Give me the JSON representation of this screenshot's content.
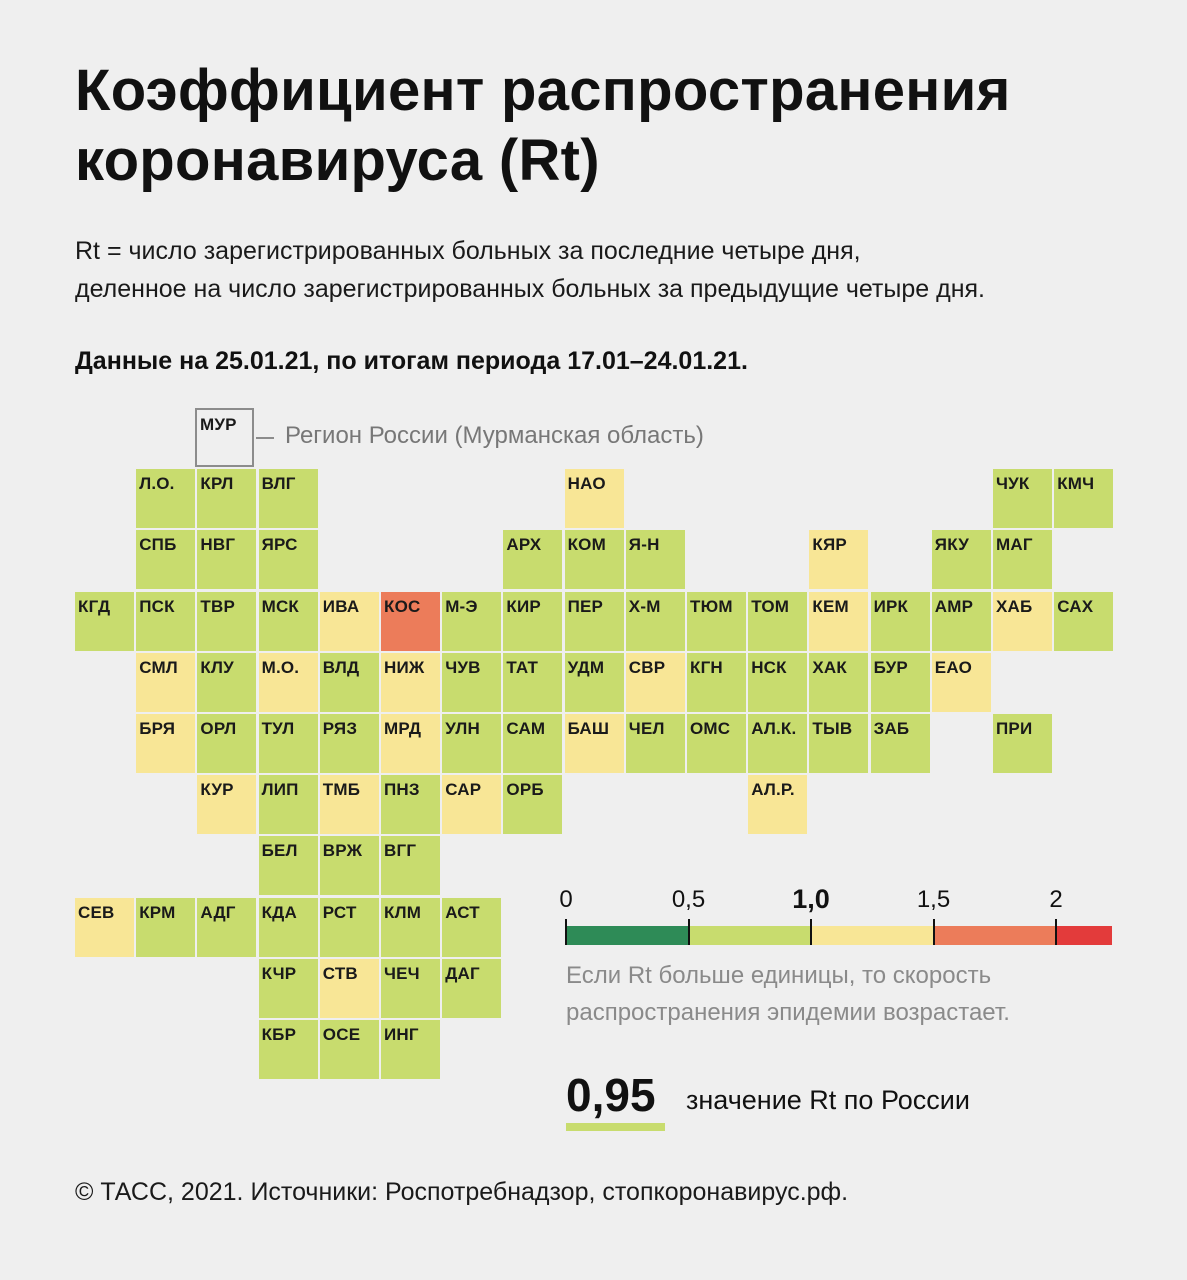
{
  "header": {
    "title": "Коэффициент распространения коронавируса (Rt)",
    "subtitle_line1": "Rt = число зарегистрированных больных за последние четыре дня,",
    "subtitle_line2": "деленное на число зарегистрированных больных за предыдущие четыре дня.",
    "date_note": "Данные на 25.01.21, по итогам периода 17.01–24.01.21."
  },
  "example": {
    "code": "МУР",
    "label": "Регион России (Мурманская область)"
  },
  "colors": {
    "dark_green": "#2e8b57",
    "green": "#c8dc6e",
    "yellow": "#f8e696",
    "orange": "#ec7c5a",
    "red": "#e33b3b",
    "outline": "#8c8c8c"
  },
  "legend": {
    "ticks": [
      "0",
      "0,5",
      "1,0",
      "1,5",
      "2"
    ],
    "note_line1": "Если Rt больше единицы, то скорость",
    "note_line2": "распространения эпидемии возрастает."
  },
  "russia": {
    "value": "0,95",
    "label": "значение Rt по России"
  },
  "footer": "© ТАСС, 2021. Источники: Роспотребнадзор, стопкоронавирус.рф.",
  "regions": [
    {
      "code": "Л.О.",
      "col": 2,
      "row": 1,
      "level": "green"
    },
    {
      "code": "КРЛ",
      "col": 3,
      "row": 1,
      "level": "green"
    },
    {
      "code": "ВЛГ",
      "col": 4,
      "row": 1,
      "level": "green"
    },
    {
      "code": "НАО",
      "col": 9,
      "row": 1,
      "level": "yellow"
    },
    {
      "code": "ЧУК",
      "col": 16,
      "row": 1,
      "level": "green"
    },
    {
      "code": "КМЧ",
      "col": 17,
      "row": 1,
      "level": "green"
    },
    {
      "code": "СПБ",
      "col": 2,
      "row": 2,
      "level": "green"
    },
    {
      "code": "НВГ",
      "col": 3,
      "row": 2,
      "level": "green"
    },
    {
      "code": "ЯРС",
      "col": 4,
      "row": 2,
      "level": "green"
    },
    {
      "code": "АРХ",
      "col": 8,
      "row": 2,
      "level": "green"
    },
    {
      "code": "КОМ",
      "col": 9,
      "row": 2,
      "level": "green"
    },
    {
      "code": "Я-Н",
      "col": 10,
      "row": 2,
      "level": "green"
    },
    {
      "code": "КЯР",
      "col": 13,
      "row": 2,
      "level": "yellow"
    },
    {
      "code": "ЯКУ",
      "col": 15,
      "row": 2,
      "level": "green"
    },
    {
      "code": "МАГ",
      "col": 16,
      "row": 2,
      "level": "green"
    },
    {
      "code": "КГД",
      "col": 1,
      "row": 3,
      "level": "green"
    },
    {
      "code": "ПСК",
      "col": 2,
      "row": 3,
      "level": "green"
    },
    {
      "code": "ТВР",
      "col": 3,
      "row": 3,
      "level": "green"
    },
    {
      "code": "МСК",
      "col": 4,
      "row": 3,
      "level": "green"
    },
    {
      "code": "ИВА",
      "col": 5,
      "row": 3,
      "level": "yellow"
    },
    {
      "code": "КОС",
      "col": 6,
      "row": 3,
      "level": "orange"
    },
    {
      "code": "М-Э",
      "col": 7,
      "row": 3,
      "level": "green"
    },
    {
      "code": "КИР",
      "col": 8,
      "row": 3,
      "level": "green"
    },
    {
      "code": "ПЕР",
      "col": 9,
      "row": 3,
      "level": "green"
    },
    {
      "code": "Х-М",
      "col": 10,
      "row": 3,
      "level": "green"
    },
    {
      "code": "ТЮМ",
      "col": 11,
      "row": 3,
      "level": "green"
    },
    {
      "code": "ТОМ",
      "col": 12,
      "row": 3,
      "level": "green"
    },
    {
      "code": "КЕМ",
      "col": 13,
      "row": 3,
      "level": "yellow"
    },
    {
      "code": "ИРК",
      "col": 14,
      "row": 3,
      "level": "green"
    },
    {
      "code": "АМР",
      "col": 15,
      "row": 3,
      "level": "green"
    },
    {
      "code": "ХАБ",
      "col": 16,
      "row": 3,
      "level": "yellow"
    },
    {
      "code": "САХ",
      "col": 17,
      "row": 3,
      "level": "green"
    },
    {
      "code": "СМЛ",
      "col": 2,
      "row": 4,
      "level": "yellow"
    },
    {
      "code": "КЛУ",
      "col": 3,
      "row": 4,
      "level": "green"
    },
    {
      "code": "М.О.",
      "col": 4,
      "row": 4,
      "level": "yellow"
    },
    {
      "code": "ВЛД",
      "col": 5,
      "row": 4,
      "level": "green"
    },
    {
      "code": "НИЖ",
      "col": 6,
      "row": 4,
      "level": "yellow"
    },
    {
      "code": "ЧУВ",
      "col": 7,
      "row": 4,
      "level": "green"
    },
    {
      "code": "ТАТ",
      "col": 8,
      "row": 4,
      "level": "green"
    },
    {
      "code": "УДМ",
      "col": 9,
      "row": 4,
      "level": "green"
    },
    {
      "code": "СВР",
      "col": 10,
      "row": 4,
      "level": "yellow"
    },
    {
      "code": "КГН",
      "col": 11,
      "row": 4,
      "level": "green"
    },
    {
      "code": "НСК",
      "col": 12,
      "row": 4,
      "level": "green"
    },
    {
      "code": "ХАК",
      "col": 13,
      "row": 4,
      "level": "green"
    },
    {
      "code": "БУР",
      "col": 14,
      "row": 4,
      "level": "green"
    },
    {
      "code": "ЕАО",
      "col": 15,
      "row": 4,
      "level": "yellow"
    },
    {
      "code": "БРЯ",
      "col": 2,
      "row": 5,
      "level": "yellow"
    },
    {
      "code": "ОРЛ",
      "col": 3,
      "row": 5,
      "level": "green"
    },
    {
      "code": "ТУЛ",
      "col": 4,
      "row": 5,
      "level": "green"
    },
    {
      "code": "РЯЗ",
      "col": 5,
      "row": 5,
      "level": "green"
    },
    {
      "code": "МРД",
      "col": 6,
      "row": 5,
      "level": "yellow"
    },
    {
      "code": "УЛН",
      "col": 7,
      "row": 5,
      "level": "green"
    },
    {
      "code": "САМ",
      "col": 8,
      "row": 5,
      "level": "green"
    },
    {
      "code": "БАШ",
      "col": 9,
      "row": 5,
      "level": "yellow"
    },
    {
      "code": "ЧЕЛ",
      "col": 10,
      "row": 5,
      "level": "green"
    },
    {
      "code": "ОМС",
      "col": 11,
      "row": 5,
      "level": "green"
    },
    {
      "code": "АЛ.К.",
      "col": 12,
      "row": 5,
      "level": "green"
    },
    {
      "code": "ТЫВ",
      "col": 13,
      "row": 5,
      "level": "green"
    },
    {
      "code": "ЗАБ",
      "col": 14,
      "row": 5,
      "level": "green"
    },
    {
      "code": "ПРИ",
      "col": 16,
      "row": 5,
      "level": "green"
    },
    {
      "code": "КУР",
      "col": 3,
      "row": 6,
      "level": "yellow"
    },
    {
      "code": "ЛИП",
      "col": 4,
      "row": 6,
      "level": "green"
    },
    {
      "code": "ТМБ",
      "col": 5,
      "row": 6,
      "level": "yellow"
    },
    {
      "code": "ПНЗ",
      "col": 6,
      "row": 6,
      "level": "green"
    },
    {
      "code": "САР",
      "col": 7,
      "row": 6,
      "level": "yellow"
    },
    {
      "code": "ОРБ",
      "col": 8,
      "row": 6,
      "level": "green"
    },
    {
      "code": "АЛ.Р.",
      "col": 12,
      "row": 6,
      "level": "yellow"
    },
    {
      "code": "БЕЛ",
      "col": 4,
      "row": 7,
      "level": "green"
    },
    {
      "code": "ВРЖ",
      "col": 5,
      "row": 7,
      "level": "green"
    },
    {
      "code": "ВГГ",
      "col": 6,
      "row": 7,
      "level": "green"
    },
    {
      "code": "СЕВ",
      "col": 1,
      "row": 8,
      "level": "yellow"
    },
    {
      "code": "КРМ",
      "col": 2,
      "row": 8,
      "level": "green"
    },
    {
      "code": "АДГ",
      "col": 3,
      "row": 8,
      "level": "green"
    },
    {
      "code": "КДА",
      "col": 4,
      "row": 8,
      "level": "green"
    },
    {
      "code": "РСТ",
      "col": 5,
      "row": 8,
      "level": "green"
    },
    {
      "code": "КЛМ",
      "col": 6,
      "row": 8,
      "level": "green"
    },
    {
      "code": "АСТ",
      "col": 7,
      "row": 8,
      "level": "green"
    },
    {
      "code": "КЧР",
      "col": 4,
      "row": 9,
      "level": "green"
    },
    {
      "code": "СТВ",
      "col": 5,
      "row": 9,
      "level": "yellow"
    },
    {
      "code": "ЧЕЧ",
      "col": 6,
      "row": 9,
      "level": "green"
    },
    {
      "code": "ДАГ",
      "col": 7,
      "row": 9,
      "level": "green"
    },
    {
      "code": "КБР",
      "col": 4,
      "row": 10,
      "level": "green"
    },
    {
      "code": "ОСЕ",
      "col": 5,
      "row": 10,
      "level": "green"
    },
    {
      "code": "ИНГ",
      "col": 6,
      "row": 10,
      "level": "green"
    }
  ]
}
